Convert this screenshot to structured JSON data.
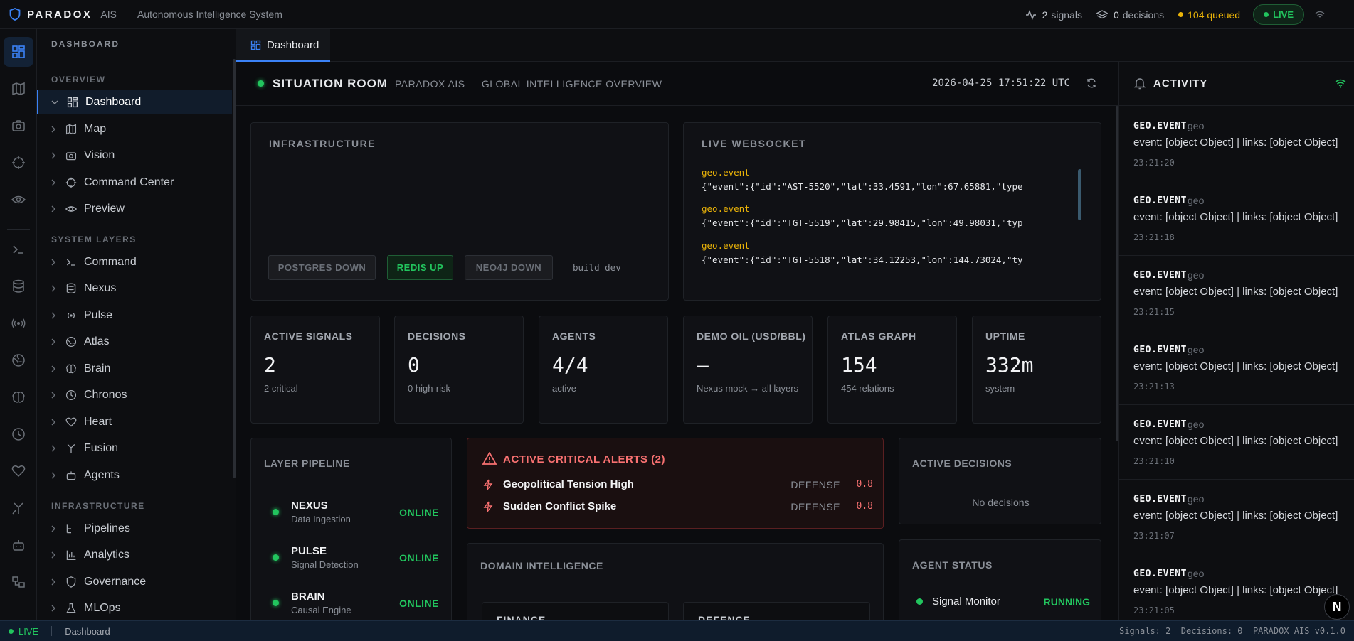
{
  "app": {
    "brand": "PARADOX",
    "product": "AIS",
    "subtitle": "Autonomous Intelligence System"
  },
  "topbar": {
    "signals_count": "2",
    "signals_label": "signals",
    "decisions_count": "0",
    "decisions_label": "decisions",
    "queued_label": "104 queued",
    "live_label": "LIVE"
  },
  "nav": {
    "header": "DASHBOARD",
    "sections": [
      {
        "title": "OVERVIEW",
        "items": [
          {
            "label": "Dashboard",
            "icon": "dashboard-icon",
            "active": true
          },
          {
            "label": "Map",
            "icon": "map-icon"
          },
          {
            "label": "Vision",
            "icon": "camera-icon"
          },
          {
            "label": "Command Center",
            "icon": "crosshair-icon"
          },
          {
            "label": "Preview",
            "icon": "eye-icon"
          }
        ]
      },
      {
        "title": "SYSTEM LAYERS",
        "items": [
          {
            "label": "Command",
            "icon": "terminal-icon"
          },
          {
            "label": "Nexus",
            "icon": "database-icon"
          },
          {
            "label": "Pulse",
            "icon": "radio-icon"
          },
          {
            "label": "Atlas",
            "icon": "globe-icon"
          },
          {
            "label": "Brain",
            "icon": "brain-icon"
          },
          {
            "label": "Chronos",
            "icon": "clock-icon"
          },
          {
            "label": "Heart",
            "icon": "heart-icon"
          },
          {
            "label": "Fusion",
            "icon": "merge-icon"
          },
          {
            "label": "Agents",
            "icon": "bot-icon"
          }
        ]
      },
      {
        "title": "INFRASTRUCTURE",
        "items": [
          {
            "label": "Pipelines",
            "icon": "pipeline-icon"
          },
          {
            "label": "Analytics",
            "icon": "bar-chart-icon"
          },
          {
            "label": "Governance",
            "icon": "shield-icon"
          },
          {
            "label": "MLOps",
            "icon": "flask-icon"
          }
        ]
      }
    ]
  },
  "tab": {
    "label": "Dashboard"
  },
  "situation": {
    "title": "SITUATION ROOM",
    "subtitle": "PARADOX AIS — GLOBAL INTELLIGENCE OVERVIEW",
    "timestamp": "2026-04-25 17:51:22 UTC"
  },
  "infrastructure": {
    "title": "INFRASTRUCTURE",
    "services": [
      {
        "label": "POSTGRES DOWN",
        "state": "down"
      },
      {
        "label": "REDIS UP",
        "state": "up"
      },
      {
        "label": "NEO4J DOWN",
        "state": "down"
      }
    ],
    "build": "build dev"
  },
  "websocket": {
    "title": "LIVE WEBSOCKET",
    "messages": [
      {
        "event": "geo.event",
        "payload": "{\"event\":{\"id\":\"AST-5520\",\"lat\":33.4591,\"lon\":67.65881,\"type"
      },
      {
        "event": "geo.event",
        "payload": "{\"event\":{\"id\":\"TGT-5519\",\"lat\":29.98415,\"lon\":49.98031,\"typ"
      },
      {
        "event": "geo.event",
        "payload": "{\"event\":{\"id\":\"TGT-5518\",\"lat\":34.12253,\"lon\":144.73024,\"ty"
      }
    ]
  },
  "kpis": [
    {
      "label": "ACTIVE SIGNALS",
      "value": "2",
      "sub": "2 critical"
    },
    {
      "label": "DECISIONS",
      "value": "0",
      "sub": "0 high-risk"
    },
    {
      "label": "AGENTS",
      "value": "4/4",
      "sub": "active"
    },
    {
      "label": "DEMO OIL (USD/BBL)",
      "value": "—",
      "sub": "Nexus mock → all layers"
    },
    {
      "label": "ATLAS GRAPH",
      "value": "154",
      "sub": "454 relations"
    },
    {
      "label": "UPTIME",
      "value": "332m",
      "sub": "system"
    }
  ],
  "pipeline": {
    "title": "LAYER PIPELINE",
    "layers": [
      {
        "name": "NEXUS",
        "desc": "Data Ingestion",
        "status": "ONLINE"
      },
      {
        "name": "PULSE",
        "desc": "Signal Detection",
        "status": "ONLINE"
      },
      {
        "name": "BRAIN",
        "desc": "Causal Engine",
        "status": "ONLINE"
      }
    ]
  },
  "alerts": {
    "title": "ACTIVE CRITICAL ALERTS (2)",
    "items": [
      {
        "title": "Geopolitical Tension High",
        "category": "DEFENSE",
        "score": "0.8"
      },
      {
        "title": "Sudden Conflict Spike",
        "category": "DEFENSE",
        "score": "0.8"
      }
    ]
  },
  "decisions": {
    "title": "ACTIVE DECISIONS",
    "empty": "No decisions"
  },
  "domain": {
    "title": "DOMAIN INTELLIGENCE",
    "cards": [
      "FINANCE",
      "DEFENCE"
    ]
  },
  "agent_status": {
    "title": "AGENT STATUS",
    "agents": [
      {
        "name": "Signal Monitor",
        "status": "RUNNING"
      }
    ]
  },
  "activity": {
    "title": "ACTIVITY",
    "items": [
      {
        "event": "GEO.EVENT",
        "tag": "geo",
        "message": "event: [object Object] | links: [object Object]",
        "time": "23:21:20"
      },
      {
        "event": "GEO.EVENT",
        "tag": "geo",
        "message": "event: [object Object] | links: [object Object]",
        "time": "23:21:18"
      },
      {
        "event": "GEO.EVENT",
        "tag": "geo",
        "message": "event: [object Object] | links: [object Object]",
        "time": "23:21:15"
      },
      {
        "event": "GEO.EVENT",
        "tag": "geo",
        "message": "event: [object Object] | links: [object Object]",
        "time": "23:21:13"
      },
      {
        "event": "GEO.EVENT",
        "tag": "geo",
        "message": "event: [object Object] | links: [object Object]",
        "time": "23:21:10"
      },
      {
        "event": "GEO.EVENT",
        "tag": "geo",
        "message": "event: [object Object] | links: [object Object]",
        "time": "23:21:07"
      },
      {
        "event": "GEO.EVENT",
        "tag": "geo",
        "message": "event: [object Object] | links: [object Object]",
        "time": "23:21:05"
      }
    ]
  },
  "badge": {
    "letter": "N"
  },
  "statusbar": {
    "live": "LIVE",
    "crumb": "Dashboard",
    "right": "Signals: 2  Decisions: 0  PARADOX AIS v0.1.0"
  },
  "colors": {
    "accent": "#3b82f6",
    "ok": "#22c55e",
    "warn": "#eab308",
    "critical": "#f87171"
  }
}
